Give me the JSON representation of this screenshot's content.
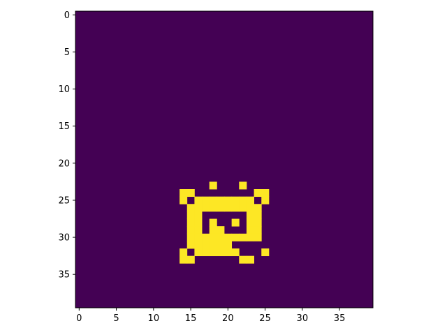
{
  "chart_data": {
    "type": "heatmap",
    "title": "",
    "xlabel": "",
    "ylabel": "",
    "xlim": [
      -0.5,
      39.5
    ],
    "ylim": [
      39.5,
      -0.5
    ],
    "grid": false,
    "colormap": "viridis",
    "colors": {
      "background": "#440154",
      "foreground": "#fde725"
    },
    "x_ticks": [
      0,
      5,
      10,
      15,
      20,
      25,
      30,
      35
    ],
    "y_ticks": [
      0,
      5,
      10,
      15,
      20,
      25,
      30,
      35
    ],
    "x_tick_labels": [
      "0",
      "5",
      "10",
      "15",
      "20",
      "25",
      "30",
      "35"
    ],
    "y_tick_labels": [
      "0",
      "5",
      "10",
      "15",
      "20",
      "25",
      "30",
      "35"
    ],
    "rows": 40,
    "cols": 40,
    "background_value": 0,
    "foreground_value": 1,
    "foreground_runs": [
      {
        "row": 23,
        "cols": [
          [
            18,
            18
          ],
          [
            22,
            22
          ]
        ]
      },
      {
        "row": 24,
        "cols": [
          [
            14,
            15
          ],
          [
            24,
            25
          ]
        ]
      },
      {
        "row": 25,
        "cols": [
          [
            14,
            14
          ],
          [
            16,
            23
          ],
          [
            25,
            25
          ]
        ]
      },
      {
        "row": 26,
        "cols": [
          [
            15,
            24
          ]
        ]
      },
      {
        "row": 27,
        "cols": [
          [
            15,
            16
          ],
          [
            23,
            24
          ]
        ]
      },
      {
        "row": 28,
        "cols": [
          [
            15,
            16
          ],
          [
            18,
            18
          ],
          [
            21,
            21
          ],
          [
            23,
            24
          ]
        ]
      },
      {
        "row": 29,
        "cols": [
          [
            15,
            16
          ],
          [
            18,
            19
          ],
          [
            23,
            24
          ]
        ]
      },
      {
        "row": 30,
        "cols": [
          [
            15,
            24
          ]
        ]
      },
      {
        "row": 31,
        "cols": [
          [
            15,
            20
          ]
        ]
      },
      {
        "row": 32,
        "cols": [
          [
            14,
            14
          ],
          [
            16,
            21
          ],
          [
            25,
            25
          ]
        ]
      },
      {
        "row": 33,
        "cols": [
          [
            14,
            15
          ],
          [
            22,
            23
          ]
        ]
      }
    ]
  }
}
